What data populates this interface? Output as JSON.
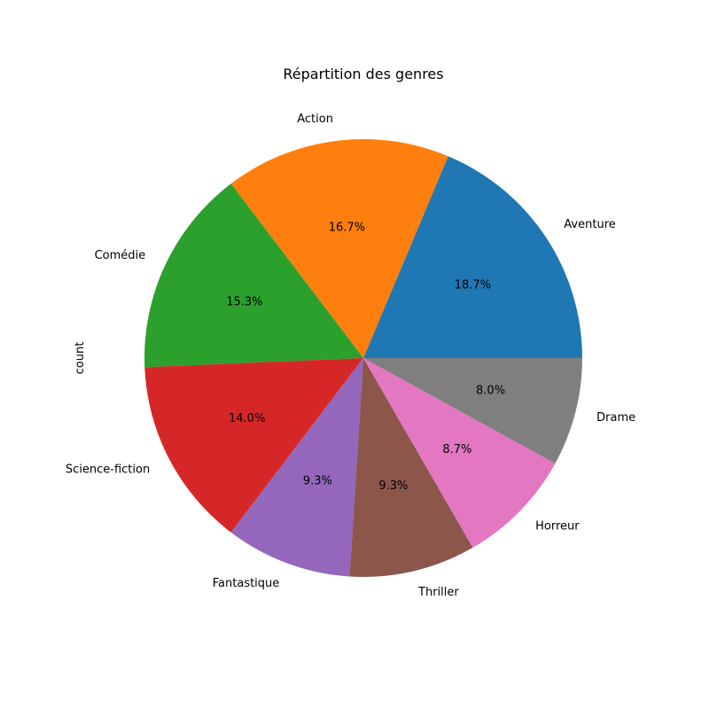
{
  "chart_data": {
    "type": "pie",
    "title": "Répartition des genres",
    "ylabel": "count",
    "categories": [
      "Aventure",
      "Action",
      "Comédie",
      "Science-fiction",
      "Fantastique",
      "Thriller",
      "Horreur",
      "Drame"
    ],
    "values": [
      28,
      25,
      23,
      21,
      14,
      14,
      13,
      12
    ],
    "percent_labels": [
      "18.7%",
      "16.7%",
      "15.3%",
      "14.0%",
      "9.3%",
      "9.3%",
      "8.7%",
      "8.0%"
    ],
    "colors": [
      "#1f77b4",
      "#ff7f0e",
      "#2ca02c",
      "#d62728",
      "#9467bd",
      "#8c564b",
      "#e377c2",
      "#7f7f7f"
    ],
    "start_angle_deg": 0,
    "direction": "counterclockwise"
  }
}
